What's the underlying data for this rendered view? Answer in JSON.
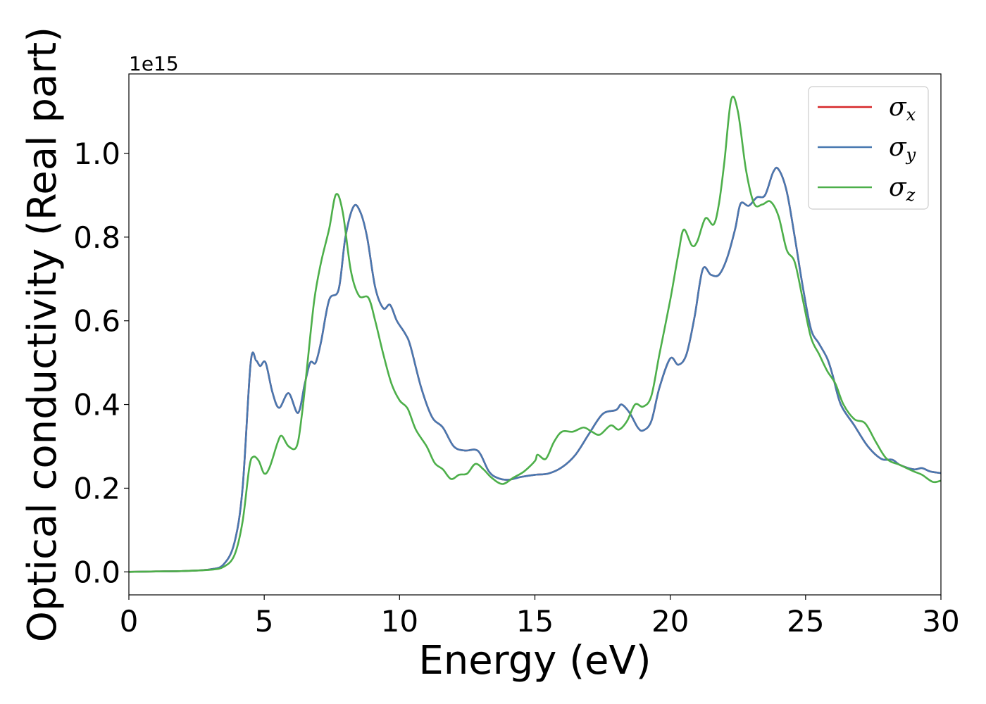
{
  "chart_data": {
    "type": "line",
    "xlabel": "Energy (eV)",
    "ylabel": "Optical conductivity (Real part)",
    "offset_text": "1e15",
    "xlim": [
      0,
      30
    ],
    "ylim": [
      -0.055,
      1.19
    ],
    "xticks": [
      0,
      5,
      10,
      15,
      20,
      25,
      30
    ],
    "yticks": [
      0.0,
      0.2,
      0.4,
      0.6,
      0.8,
      1.0
    ],
    "ytick_labels": [
      "0.0",
      "0.2",
      "0.4",
      "0.6",
      "0.8",
      "1.0"
    ],
    "grid": false,
    "legend_position": "top-right",
    "series": [
      {
        "name": "σx",
        "symbol": "σ",
        "sub": "x",
        "color": "#d62728",
        "points": [
          [
            0,
            0
          ],
          [
            1,
            0.001
          ],
          [
            2,
            0.002
          ],
          [
            3,
            0.006
          ],
          [
            3.5,
            0.018
          ],
          [
            3.9,
            0.07
          ],
          [
            4.2,
            0.2
          ],
          [
            4.5,
            0.5
          ],
          [
            4.7,
            0.505
          ],
          [
            4.85,
            0.492
          ],
          [
            5.05,
            0.5
          ],
          [
            5.3,
            0.43
          ],
          [
            5.55,
            0.392
          ],
          [
            5.9,
            0.427
          ],
          [
            6.25,
            0.38
          ],
          [
            6.5,
            0.45
          ],
          [
            6.7,
            0.5
          ],
          [
            6.9,
            0.5
          ],
          [
            7.1,
            0.55
          ],
          [
            7.4,
            0.65
          ],
          [
            7.75,
            0.675
          ],
          [
            8.0,
            0.8
          ],
          [
            8.3,
            0.873
          ],
          [
            8.55,
            0.86
          ],
          [
            8.8,
            0.8
          ],
          [
            9.1,
            0.68
          ],
          [
            9.4,
            0.63
          ],
          [
            9.65,
            0.638
          ],
          [
            9.9,
            0.6
          ],
          [
            10.2,
            0.57
          ],
          [
            10.4,
            0.54
          ],
          [
            10.8,
            0.44
          ],
          [
            11.2,
            0.37
          ],
          [
            11.6,
            0.345
          ],
          [
            12.0,
            0.3
          ],
          [
            12.4,
            0.29
          ],
          [
            12.8,
            0.292
          ],
          [
            13.0,
            0.28
          ],
          [
            13.3,
            0.24
          ],
          [
            13.6,
            0.225
          ],
          [
            14.0,
            0.22
          ],
          [
            14.5,
            0.227
          ],
          [
            15.0,
            0.232
          ],
          [
            15.5,
            0.235
          ],
          [
            16.0,
            0.25
          ],
          [
            16.5,
            0.28
          ],
          [
            17.0,
            0.33
          ],
          [
            17.5,
            0.377
          ],
          [
            18.0,
            0.387
          ],
          [
            18.2,
            0.4
          ],
          [
            18.5,
            0.38
          ],
          [
            18.8,
            0.345
          ],
          [
            19.0,
            0.338
          ],
          [
            19.3,
            0.36
          ],
          [
            19.6,
            0.44
          ],
          [
            20.0,
            0.51
          ],
          [
            20.3,
            0.495
          ],
          [
            20.6,
            0.52
          ],
          [
            20.9,
            0.61
          ],
          [
            21.2,
            0.723
          ],
          [
            21.5,
            0.71
          ],
          [
            21.8,
            0.71
          ],
          [
            22.1,
            0.75
          ],
          [
            22.4,
            0.82
          ],
          [
            22.6,
            0.88
          ],
          [
            22.9,
            0.875
          ],
          [
            23.2,
            0.895
          ],
          [
            23.5,
            0.9
          ],
          [
            23.8,
            0.955
          ],
          [
            24.0,
            0.962
          ],
          [
            24.3,
            0.91
          ],
          [
            24.6,
            0.8
          ],
          [
            24.9,
            0.68
          ],
          [
            25.2,
            0.58
          ],
          [
            25.5,
            0.545
          ],
          [
            25.8,
            0.51
          ],
          [
            26.0,
            0.47
          ],
          [
            26.3,
            0.4
          ],
          [
            26.8,
            0.35
          ],
          [
            27.3,
            0.3
          ],
          [
            27.8,
            0.27
          ],
          [
            28.2,
            0.268
          ],
          [
            28.5,
            0.255
          ],
          [
            29.0,
            0.245
          ],
          [
            29.3,
            0.248
          ],
          [
            29.6,
            0.24
          ],
          [
            30,
            0.236
          ]
        ]
      },
      {
        "name": "σy",
        "symbol": "σ",
        "sub": "y",
        "color": "#4878b0",
        "points": [
          [
            0,
            0
          ],
          [
            1,
            0.001
          ],
          [
            2,
            0.002
          ],
          [
            3,
            0.006
          ],
          [
            3.5,
            0.018
          ],
          [
            3.9,
            0.07
          ],
          [
            4.2,
            0.2
          ],
          [
            4.5,
            0.5
          ],
          [
            4.7,
            0.505
          ],
          [
            4.85,
            0.492
          ],
          [
            5.05,
            0.5
          ],
          [
            5.3,
            0.43
          ],
          [
            5.55,
            0.392
          ],
          [
            5.9,
            0.427
          ],
          [
            6.25,
            0.38
          ],
          [
            6.5,
            0.45
          ],
          [
            6.7,
            0.5
          ],
          [
            6.9,
            0.5
          ],
          [
            7.1,
            0.55
          ],
          [
            7.4,
            0.65
          ],
          [
            7.75,
            0.675
          ],
          [
            8.0,
            0.8
          ],
          [
            8.3,
            0.873
          ],
          [
            8.55,
            0.86
          ],
          [
            8.8,
            0.8
          ],
          [
            9.1,
            0.68
          ],
          [
            9.4,
            0.63
          ],
          [
            9.65,
            0.638
          ],
          [
            9.9,
            0.6
          ],
          [
            10.2,
            0.57
          ],
          [
            10.4,
            0.54
          ],
          [
            10.8,
            0.44
          ],
          [
            11.2,
            0.37
          ],
          [
            11.6,
            0.345
          ],
          [
            12.0,
            0.3
          ],
          [
            12.4,
            0.29
          ],
          [
            12.8,
            0.292
          ],
          [
            13.0,
            0.28
          ],
          [
            13.3,
            0.24
          ],
          [
            13.6,
            0.225
          ],
          [
            14.0,
            0.22
          ],
          [
            14.5,
            0.227
          ],
          [
            15.0,
            0.232
          ],
          [
            15.5,
            0.235
          ],
          [
            16.0,
            0.25
          ],
          [
            16.5,
            0.28
          ],
          [
            17.0,
            0.33
          ],
          [
            17.5,
            0.377
          ],
          [
            18.0,
            0.387
          ],
          [
            18.2,
            0.4
          ],
          [
            18.5,
            0.38
          ],
          [
            18.8,
            0.345
          ],
          [
            19.0,
            0.338
          ],
          [
            19.3,
            0.36
          ],
          [
            19.6,
            0.44
          ],
          [
            20.0,
            0.51
          ],
          [
            20.3,
            0.495
          ],
          [
            20.6,
            0.52
          ],
          [
            20.9,
            0.61
          ],
          [
            21.2,
            0.723
          ],
          [
            21.5,
            0.71
          ],
          [
            21.8,
            0.71
          ],
          [
            22.1,
            0.75
          ],
          [
            22.4,
            0.82
          ],
          [
            22.6,
            0.88
          ],
          [
            22.9,
            0.875
          ],
          [
            23.2,
            0.895
          ],
          [
            23.5,
            0.9
          ],
          [
            23.8,
            0.955
          ],
          [
            24.0,
            0.962
          ],
          [
            24.3,
            0.91
          ],
          [
            24.6,
            0.8
          ],
          [
            24.9,
            0.68
          ],
          [
            25.2,
            0.58
          ],
          [
            25.5,
            0.545
          ],
          [
            25.8,
            0.51
          ],
          [
            26.0,
            0.47
          ],
          [
            26.3,
            0.4
          ],
          [
            26.8,
            0.35
          ],
          [
            27.3,
            0.3
          ],
          [
            27.8,
            0.27
          ],
          [
            28.2,
            0.268
          ],
          [
            28.5,
            0.255
          ],
          [
            29.0,
            0.245
          ],
          [
            29.3,
            0.248
          ],
          [
            29.6,
            0.24
          ],
          [
            30,
            0.236
          ]
        ]
      },
      {
        "name": "σz",
        "symbol": "σ",
        "sub": "z",
        "color": "#4daf4a",
        "points": [
          [
            0,
            0
          ],
          [
            1,
            0.001
          ],
          [
            2,
            0.002
          ],
          [
            3,
            0.005
          ],
          [
            3.5,
            0.012
          ],
          [
            3.9,
            0.04
          ],
          [
            4.2,
            0.12
          ],
          [
            4.45,
            0.25
          ],
          [
            4.6,
            0.275
          ],
          [
            4.8,
            0.265
          ],
          [
            5.0,
            0.235
          ],
          [
            5.2,
            0.25
          ],
          [
            5.5,
            0.31
          ],
          [
            5.65,
            0.325
          ],
          [
            5.9,
            0.3
          ],
          [
            6.2,
            0.3
          ],
          [
            6.4,
            0.38
          ],
          [
            6.6,
            0.5
          ],
          [
            6.85,
            0.65
          ],
          [
            7.1,
            0.74
          ],
          [
            7.4,
            0.82
          ],
          [
            7.65,
            0.902
          ],
          [
            7.9,
            0.86
          ],
          [
            8.2,
            0.72
          ],
          [
            8.5,
            0.66
          ],
          [
            8.85,
            0.655
          ],
          [
            9.1,
            0.6
          ],
          [
            9.4,
            0.52
          ],
          [
            9.7,
            0.45
          ],
          [
            10.0,
            0.41
          ],
          [
            10.3,
            0.39
          ],
          [
            10.6,
            0.34
          ],
          [
            11.0,
            0.3
          ],
          [
            11.3,
            0.26
          ],
          [
            11.6,
            0.245
          ],
          [
            11.9,
            0.222
          ],
          [
            12.2,
            0.232
          ],
          [
            12.5,
            0.235
          ],
          [
            12.8,
            0.258
          ],
          [
            13.1,
            0.245
          ],
          [
            13.4,
            0.225
          ],
          [
            13.8,
            0.21
          ],
          [
            14.2,
            0.225
          ],
          [
            14.6,
            0.24
          ],
          [
            15.0,
            0.265
          ],
          [
            15.1,
            0.28
          ],
          [
            15.4,
            0.27
          ],
          [
            15.7,
            0.31
          ],
          [
            16.0,
            0.335
          ],
          [
            16.4,
            0.335
          ],
          [
            16.8,
            0.345
          ],
          [
            17.1,
            0.335
          ],
          [
            17.4,
            0.328
          ],
          [
            17.8,
            0.35
          ],
          [
            18.1,
            0.34
          ],
          [
            18.4,
            0.36
          ],
          [
            18.7,
            0.4
          ],
          [
            19.0,
            0.395
          ],
          [
            19.3,
            0.42
          ],
          [
            19.6,
            0.52
          ],
          [
            20.0,
            0.65
          ],
          [
            20.3,
            0.76
          ],
          [
            20.5,
            0.818
          ],
          [
            20.8,
            0.78
          ],
          [
            21.0,
            0.79
          ],
          [
            21.3,
            0.845
          ],
          [
            21.6,
            0.83
          ],
          [
            21.8,
            0.88
          ],
          [
            22.0,
            0.98
          ],
          [
            22.25,
            1.128
          ],
          [
            22.5,
            1.1
          ],
          [
            22.8,
            0.96
          ],
          [
            23.1,
            0.88
          ],
          [
            23.4,
            0.878
          ],
          [
            23.7,
            0.885
          ],
          [
            24.0,
            0.85
          ],
          [
            24.3,
            0.77
          ],
          [
            24.6,
            0.74
          ],
          [
            24.9,
            0.65
          ],
          [
            25.2,
            0.56
          ],
          [
            25.5,
            0.52
          ],
          [
            25.8,
            0.48
          ],
          [
            26.1,
            0.45
          ],
          [
            26.4,
            0.4
          ],
          [
            26.8,
            0.365
          ],
          [
            27.2,
            0.355
          ],
          [
            27.6,
            0.31
          ],
          [
            28.0,
            0.27
          ],
          [
            28.5,
            0.255
          ],
          [
            29.0,
            0.24
          ],
          [
            29.3,
            0.232
          ],
          [
            29.7,
            0.215
          ],
          [
            30,
            0.218
          ]
        ]
      }
    ]
  }
}
